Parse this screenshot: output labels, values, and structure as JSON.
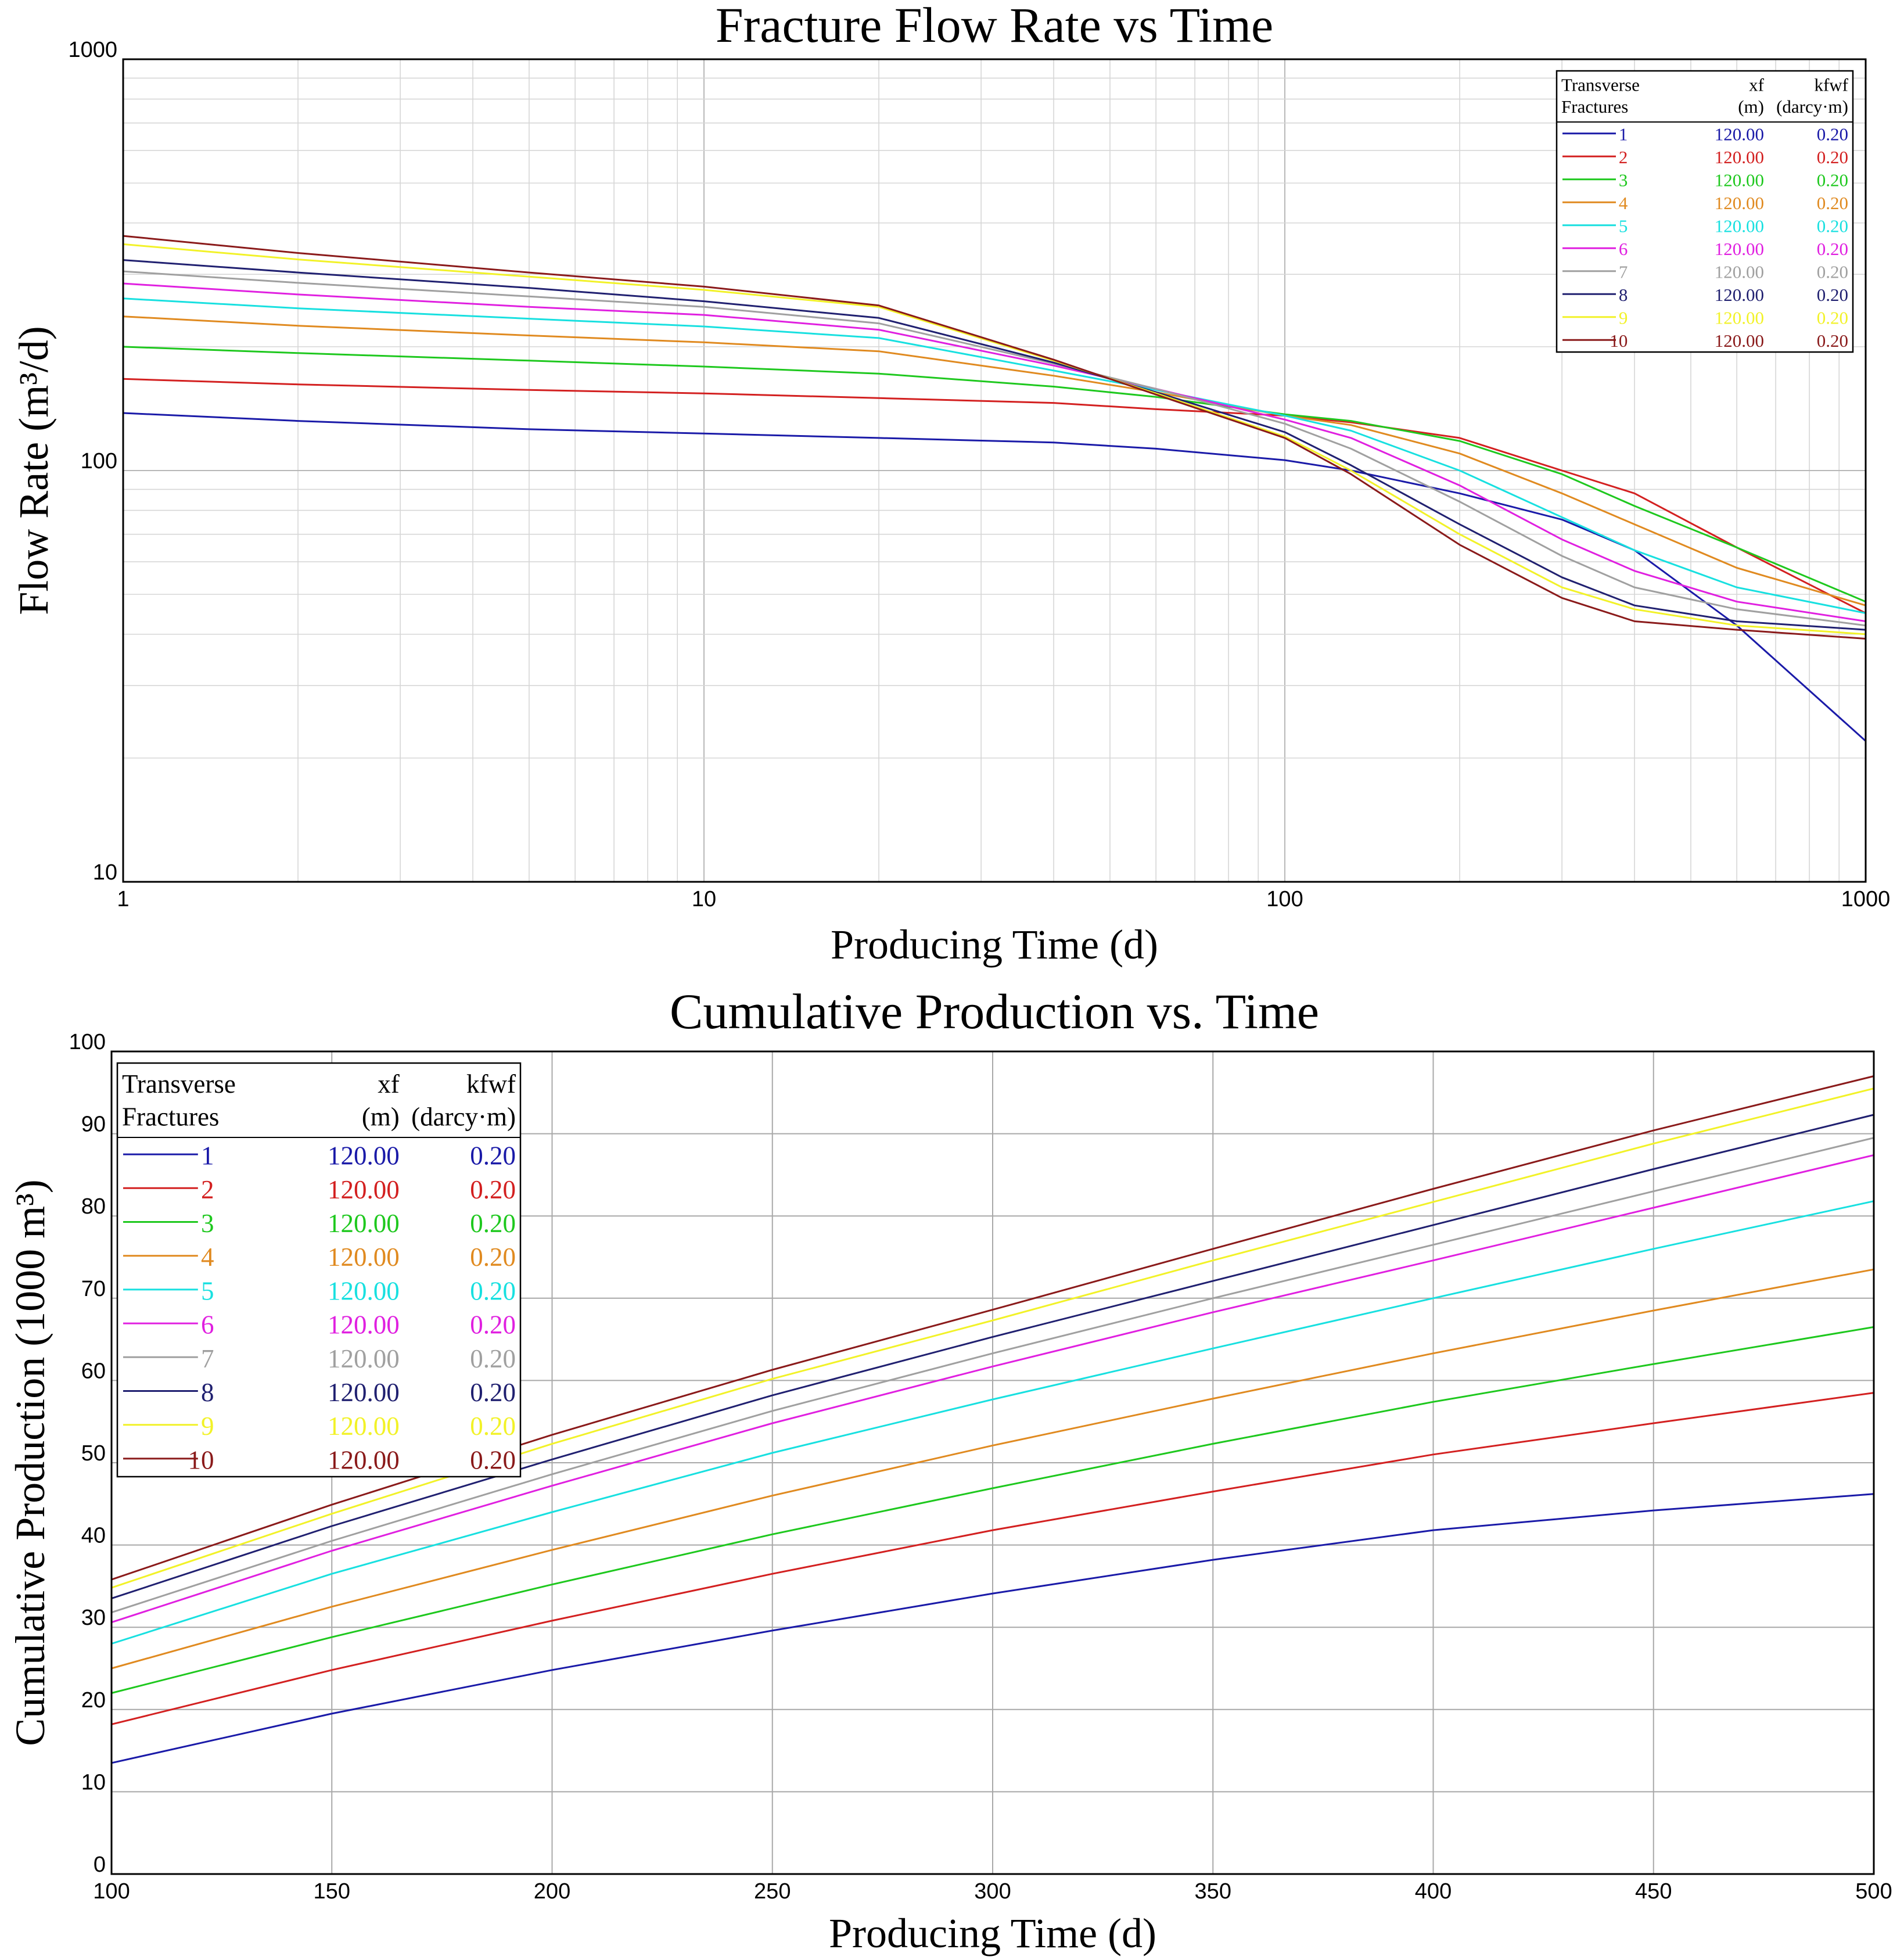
{
  "chart_data": [
    {
      "type": "line",
      "title": "Fracture Flow Rate vs Time",
      "xlabel": "Producing Time (d)",
      "ylabel": "Flow Rate (m³/d)",
      "xscale": "log",
      "yscale": "log",
      "xlim": [
        1,
        1000
      ],
      "ylim": [
        10,
        1000
      ],
      "x_ticks": [
        "1",
        "10",
        "100",
        "1000"
      ],
      "y_ticks": [
        "10",
        "100",
        "1000"
      ],
      "grid": true,
      "legend_position": "top-right",
      "legend_header": [
        "Transverse",
        "Fractures",
        "xf",
        "(m)",
        "kfwf",
        "(darcy·m)"
      ],
      "x": [
        1,
        2,
        5,
        10,
        20,
        40,
        60,
        100,
        130,
        200,
        300,
        400,
        600,
        1000
      ],
      "series": [
        {
          "name": "1",
          "xf": "120.00",
          "kfwf": "0.20",
          "color": "#1a1aa8",
          "values": [
            138,
            132,
            126,
            123,
            120,
            117,
            113,
            106,
            100,
            88,
            76,
            64,
            42,
            22
          ]
        },
        {
          "name": "2",
          "xf": "120.00",
          "kfwf": "0.20",
          "color": "#d32020",
          "values": [
            167,
            162,
            157,
            154,
            150,
            146,
            141,
            136,
            131,
            120,
            100,
            88,
            65,
            45
          ]
        },
        {
          "name": "3",
          "xf": "120.00",
          "kfwf": "0.20",
          "color": "#1ec81e",
          "values": [
            200,
            193,
            185,
            179,
            172,
            160,
            151,
            137,
            132,
            118,
            98,
            82,
            65,
            48
          ]
        },
        {
          "name": "4",
          "xf": "120.00",
          "kfwf": "0.20",
          "color": "#e08a20",
          "values": [
            237,
            225,
            213,
            205,
            195,
            170,
            155,
            136,
            129,
            110,
            88,
            74,
            58,
            47
          ]
        },
        {
          "name": "5",
          "xf": "120.00",
          "kfwf": "0.20",
          "color": "#18e0e0",
          "values": [
            262,
            248,
            234,
            224,
            210,
            175,
            157,
            136,
            125,
            100,
            77,
            64,
            52,
            45
          ]
        },
        {
          "name": "6",
          "xf": "120.00",
          "kfwf": "0.20",
          "color": "#e020e0",
          "values": [
            285,
            268,
            250,
            239,
            220,
            180,
            158,
            133,
            120,
            92,
            68,
            57,
            48,
            43
          ]
        },
        {
          "name": "7",
          "xf": "120.00",
          "kfwf": "0.20",
          "color": "#a0a0a0",
          "values": [
            305,
            286,
            265,
            250,
            228,
            182,
            158,
            130,
            113,
            84,
            62,
            52,
            46,
            42
          ]
        },
        {
          "name": "8",
          "xf": "120.00",
          "kfwf": "0.20",
          "color": "#202070",
          "values": [
            325,
            303,
            278,
            258,
            235,
            183,
            155,
            124,
            103,
            74,
            55,
            47,
            43,
            41
          ]
        },
        {
          "name": "9",
          "xf": "120.00",
          "kfwf": "0.20",
          "color": "#f2f228",
          "values": [
            355,
            326,
            296,
            275,
            250,
            185,
            154,
            121,
            100,
            70,
            52,
            46,
            42,
            40
          ]
        },
        {
          "name": "10",
          "xf": "120.00",
          "kfwf": "0.20",
          "color": "#8a1a1a",
          "values": [
            372,
            338,
            303,
            280,
            252,
            186,
            153,
            120,
            98,
            66,
            49,
            43,
            41,
            39
          ]
        }
      ]
    },
    {
      "type": "line",
      "title": "Cumulative Production vs. Time",
      "xlabel": "Producing Time (d)",
      "ylabel": "Cumulative Production (1000 m³)",
      "xlim": [
        100,
        500
      ],
      "ylim": [
        0,
        100
      ],
      "x_ticks": [
        "100",
        "150",
        "200",
        "250",
        "300",
        "350",
        "400",
        "450",
        "500"
      ],
      "y_ticks": [
        "0",
        "10",
        "20",
        "30",
        "40",
        "50",
        "60",
        "70",
        "80",
        "90",
        "100"
      ],
      "grid": true,
      "legend_position": "top-left",
      "legend_header": [
        "Transverse",
        "Fractures",
        "xf",
        "(m)",
        "kfwf",
        "(darcy·m)"
      ],
      "x": [
        100,
        150,
        200,
        250,
        300,
        350,
        400,
        450,
        500
      ],
      "series": [
        {
          "name": "1",
          "xf": "120.00",
          "kfwf": "0.20",
          "color": "#1a1aa8",
          "values": [
            13.5,
            19.5,
            24.8,
            29.6,
            34.1,
            38.2,
            41.8,
            44.2,
            46.2
          ]
        },
        {
          "name": "2",
          "xf": "120.00",
          "kfwf": "0.20",
          "color": "#d32020",
          "values": [
            18.2,
            24.8,
            30.8,
            36.5,
            41.8,
            46.5,
            51.0,
            54.8,
            58.5
          ]
        },
        {
          "name": "3",
          "xf": "120.00",
          "kfwf": "0.20",
          "color": "#1ec81e",
          "values": [
            22.0,
            28.8,
            35.2,
            41.3,
            46.9,
            52.3,
            57.4,
            62.0,
            66.5
          ]
        },
        {
          "name": "4",
          "xf": "120.00",
          "kfwf": "0.20",
          "color": "#e08a20",
          "values": [
            25.0,
            32.5,
            39.4,
            46.0,
            52.1,
            57.8,
            63.3,
            68.5,
            73.5
          ]
        },
        {
          "name": "5",
          "xf": "120.00",
          "kfwf": "0.20",
          "color": "#18e0e0",
          "values": [
            28.0,
            36.5,
            44.0,
            51.2,
            57.7,
            63.9,
            70.0,
            76.0,
            81.8
          ]
        },
        {
          "name": "6",
          "xf": "120.00",
          "kfwf": "0.20",
          "color": "#e020e0",
          "values": [
            30.6,
            39.3,
            47.2,
            54.8,
            61.7,
            68.3,
            74.6,
            81.0,
            87.4
          ]
        },
        {
          "name": "7",
          "xf": "120.00",
          "kfwf": "0.20",
          "color": "#a0a0a0",
          "values": [
            31.8,
            40.5,
            48.6,
            56.3,
            63.3,
            70.0,
            76.5,
            83.0,
            89.5
          ]
        },
        {
          "name": "8",
          "xf": "120.00",
          "kfwf": "0.20",
          "color": "#202070",
          "values": [
            33.5,
            42.3,
            50.4,
            58.2,
            65.3,
            72.1,
            78.9,
            85.7,
            92.3
          ]
        },
        {
          "name": "9",
          "xf": "120.00",
          "kfwf": "0.20",
          "color": "#f2f228",
          "values": [
            34.8,
            43.8,
            52.3,
            60.2,
            67.3,
            74.6,
            81.7,
            88.8,
            95.5
          ]
        },
        {
          "name": "10",
          "xf": "120.00",
          "kfwf": "0.20",
          "color": "#8a1a1a",
          "values": [
            35.8,
            44.9,
            53.4,
            61.3,
            68.6,
            76.0,
            83.3,
            90.4,
            97.0
          ]
        }
      ]
    }
  ]
}
